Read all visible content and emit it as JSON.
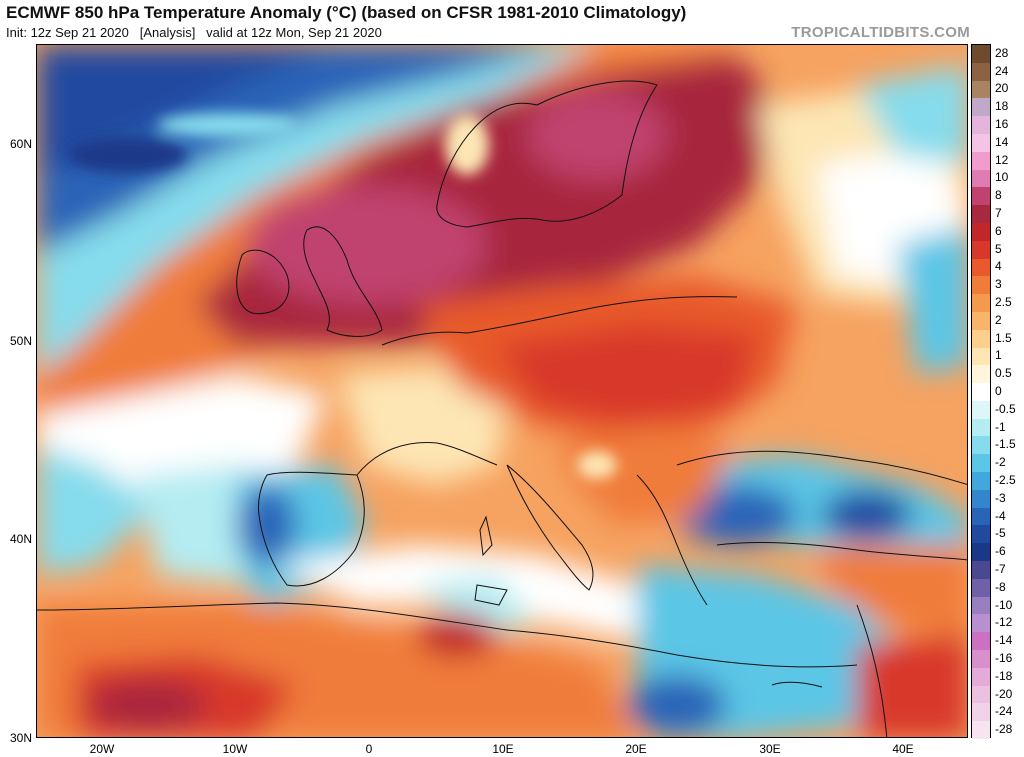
{
  "header": {
    "title": "ECMWF 850 hPa Temperature Anomaly (°C) (based on CFSR 1981-2010 Climatology)",
    "subtitle": "Init: 12z Sep 21 2020   [Analysis]   valid at 12z Mon, Sep 21 2020",
    "brand": "TROPICALTIDBITS.COM"
  },
  "axes": {
    "latitudes": [
      {
        "label": "60N",
        "lat": 60
      },
      {
        "label": "50N",
        "lat": 50
      },
      {
        "label": "40N",
        "lat": 40
      },
      {
        "label": "30N",
        "lat": 30
      }
    ],
    "longitudes": [
      {
        "label": "20W",
        "lon": -20
      },
      {
        "label": "10W",
        "lon": -10
      },
      {
        "label": "0",
        "lon": 0
      },
      {
        "label": "10E",
        "lon": 10
      },
      {
        "label": "20E",
        "lon": 20
      },
      {
        "label": "30E",
        "lon": 30
      },
      {
        "label": "40E",
        "lon": 40
      }
    ]
  },
  "colorbar": {
    "levels": [
      {
        "label": "28",
        "color": "#6e4a2e"
      },
      {
        "label": "24",
        "color": "#8c6242"
      },
      {
        "label": "20",
        "color": "#a88462"
      },
      {
        "label": "18",
        "color": "#c0a8c8"
      },
      {
        "label": "16",
        "color": "#e4b4dc"
      },
      {
        "label": "14",
        "color": "#f4c4e4"
      },
      {
        "label": "12",
        "color": "#f09ccc"
      },
      {
        "label": "10",
        "color": "#e07cb4"
      },
      {
        "label": "8",
        "color": "#c0426e"
      },
      {
        "label": "7",
        "color": "#a8283e"
      },
      {
        "label": "6",
        "color": "#c0262a"
      },
      {
        "label": "5",
        "color": "#d8382a"
      },
      {
        "label": "4",
        "color": "#e85a2c"
      },
      {
        "label": "3",
        "color": "#f07c3a"
      },
      {
        "label": "2.5",
        "color": "#f49a4c"
      },
      {
        "label": "2",
        "color": "#f8b468"
      },
      {
        "label": "1.5",
        "color": "#fcd08c"
      },
      {
        "label": "1",
        "color": "#fde6b4"
      },
      {
        "label": "0.5",
        "color": "#fff6dc"
      },
      {
        "label": "0",
        "color": "#ffffff"
      },
      {
        "label": "-0.5",
        "color": "#dff6f8"
      },
      {
        "label": "-1",
        "color": "#b4ecf2"
      },
      {
        "label": "-1.5",
        "color": "#86dcec"
      },
      {
        "label": "-2",
        "color": "#5cc6e6"
      },
      {
        "label": "-2.5",
        "color": "#42a8dc"
      },
      {
        "label": "-3",
        "color": "#3486cc"
      },
      {
        "label": "-4",
        "color": "#2a64b8"
      },
      {
        "label": "-5",
        "color": "#204aa0"
      },
      {
        "label": "-6",
        "color": "#1a3888"
      },
      {
        "label": "-7",
        "color": "#4a4890"
      },
      {
        "label": "-8",
        "color": "#7060a8"
      },
      {
        "label": "-10",
        "color": "#9880c0"
      },
      {
        "label": "-12",
        "color": "#b890d0"
      },
      {
        "label": "-14",
        "color": "#cc70c4"
      },
      {
        "label": "-16",
        "color": "#d890cc"
      },
      {
        "label": "-18",
        "color": "#e4aad8"
      },
      {
        "label": "-20",
        "color": "#ecc0e0"
      },
      {
        "label": "-24",
        "color": "#f2d2e8"
      },
      {
        "label": "-28",
        "color": "#f8e4f0"
      }
    ]
  }
}
